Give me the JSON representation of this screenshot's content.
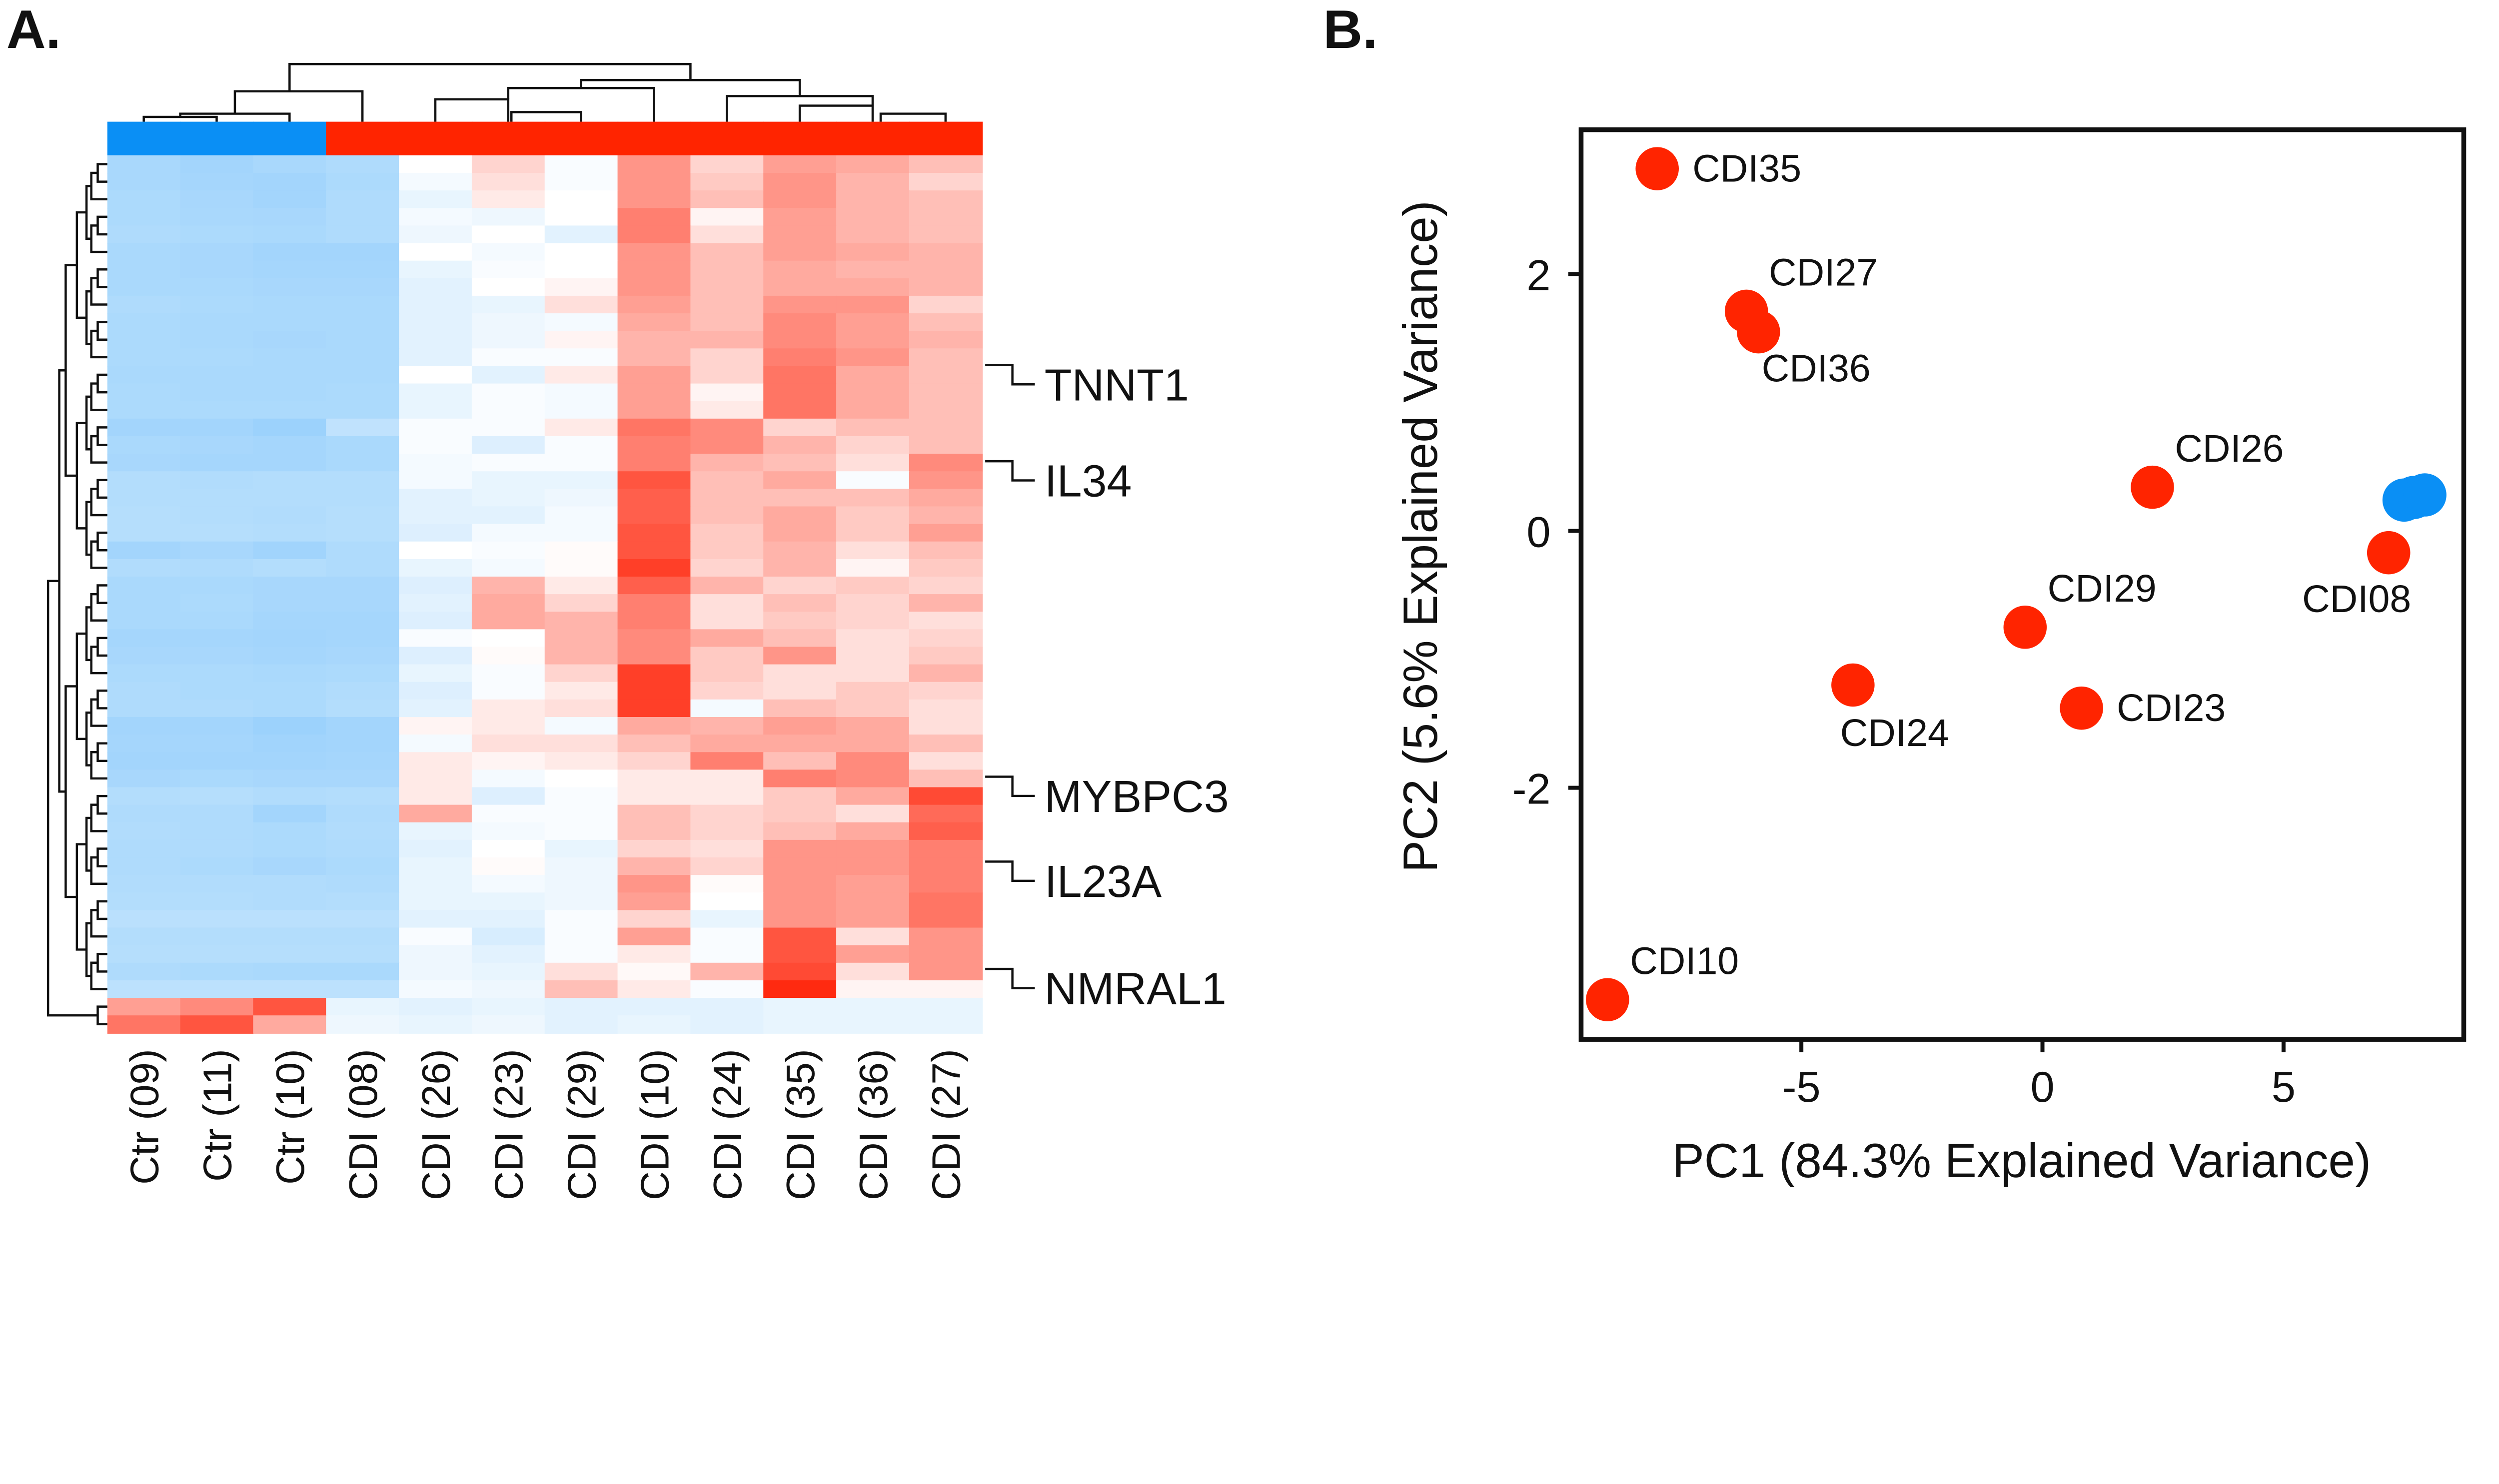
{
  "panels": {
    "a": "A.",
    "b": "B."
  },
  "colors": {
    "control": "#0a8ff5",
    "cdi": "#ff2400",
    "low": "#8ccbfb",
    "mid": "#ffffff",
    "high": "#ff2a10"
  },
  "chart_data": [
    {
      "type": "heatmap",
      "title": "",
      "columns": [
        "Ctr (09)",
        "Ctr (11)",
        "Ctr (10)",
        "CDI (08)",
        "CDI (26)",
        "CDI (23)",
        "CDI (29)",
        "CDI (10)",
        "CDI (24)",
        "CDI (35)",
        "CDI (36)",
        "CDI (27)"
      ],
      "column_groups": [
        "control",
        "control",
        "control",
        "cdi",
        "cdi",
        "cdi",
        "cdi",
        "cdi",
        "cdi",
        "cdi",
        "cdi",
        "cdi"
      ],
      "labeled_genes": [
        {
          "name": "TNNT1",
          "row": 14
        },
        {
          "name": "IL34",
          "row": 19
        },
        {
          "name": "MYBPC3",
          "row": 37
        },
        {
          "name": "IL23A",
          "row": 42
        },
        {
          "name": "NMRAL1",
          "row": 48
        }
      ],
      "scale": "relative expression (blue low, red high)",
      "values": [
        [
          -0.75,
          -0.8,
          -0.75,
          -0.7,
          0,
          0.2,
          -0.05,
          0.5,
          0.2,
          0.45,
          0.4,
          0.3
        ],
        [
          -0.75,
          -0.78,
          -0.8,
          -0.72,
          -0.1,
          0.15,
          -0.05,
          0.5,
          0.25,
          0.5,
          0.35,
          0.2
        ],
        [
          -0.72,
          -0.76,
          -0.8,
          -0.7,
          -0.2,
          0.1,
          0,
          0.5,
          0.3,
          0.5,
          0.35,
          0.3
        ],
        [
          -0.72,
          -0.75,
          -0.76,
          -0.7,
          -0.1,
          -0.15,
          0,
          0.6,
          0.05,
          0.45,
          0.35,
          0.3
        ],
        [
          -0.7,
          -0.72,
          -0.74,
          -0.7,
          -0.15,
          0,
          -0.25,
          0.6,
          0.15,
          0.45,
          0.35,
          0.3
        ],
        [
          -0.74,
          -0.76,
          -0.8,
          -0.8,
          0,
          -0.1,
          0,
          0.5,
          0.3,
          0.45,
          0.4,
          0.35
        ],
        [
          -0.74,
          -0.76,
          -0.78,
          -0.78,
          -0.2,
          -0.05,
          0,
          0.5,
          0.3,
          0.4,
          0.35,
          0.35
        ],
        [
          -0.74,
          -0.74,
          -0.76,
          -0.76,
          -0.25,
          0,
          0.05,
          0.5,
          0.3,
          0.4,
          0.4,
          0.35
        ],
        [
          -0.7,
          -0.72,
          -0.74,
          -0.74,
          -0.25,
          -0.2,
          0.15,
          0.45,
          0.3,
          0.5,
          0.5,
          0.2
        ],
        [
          -0.72,
          -0.74,
          -0.74,
          -0.74,
          -0.25,
          -0.15,
          -0.1,
          0.4,
          0.3,
          0.55,
          0.45,
          0.3
        ],
        [
          -0.72,
          -0.74,
          -0.76,
          -0.74,
          -0.25,
          -0.15,
          0.05,
          0.35,
          0.35,
          0.55,
          0.45,
          0.35
        ],
        [
          -0.72,
          -0.72,
          -0.74,
          -0.74,
          -0.25,
          -0.05,
          -0.05,
          0.35,
          0.2,
          0.6,
          0.5,
          0.3
        ],
        [
          -0.74,
          -0.74,
          -0.74,
          -0.74,
          0,
          -0.25,
          0.1,
          0.45,
          0.2,
          0.65,
          0.4,
          0.3
        ],
        [
          -0.72,
          -0.74,
          -0.74,
          -0.72,
          -0.2,
          -0.05,
          -0.1,
          0.45,
          0.05,
          0.65,
          0.4,
          0.3
        ],
        [
          -0.72,
          -0.72,
          -0.72,
          -0.72,
          -0.2,
          -0.05,
          -0.1,
          0.45,
          0.1,
          0.65,
          0.4,
          0.3
        ],
        [
          -0.8,
          -0.8,
          -0.86,
          -0.55,
          -0.05,
          -0.05,
          0.1,
          0.65,
          0.55,
          0.2,
          0.3,
          0.3
        ],
        [
          -0.74,
          -0.76,
          -0.78,
          -0.74,
          -0.05,
          -0.3,
          -0.05,
          0.6,
          0.55,
          0.35,
          0.2,
          0.3
        ],
        [
          -0.76,
          -0.78,
          -0.78,
          -0.74,
          -0.1,
          -0.05,
          -0.05,
          0.6,
          0.35,
          0.3,
          0.15,
          0.55
        ],
        [
          -0.66,
          -0.68,
          -0.66,
          -0.66,
          -0.1,
          -0.2,
          -0.2,
          0.8,
          0.3,
          0.4,
          -0.05,
          0.5
        ],
        [
          -0.66,
          -0.66,
          -0.66,
          -0.66,
          -0.25,
          -0.2,
          -0.15,
          0.75,
          0.3,
          0.3,
          0.3,
          0.4
        ],
        [
          -0.64,
          -0.66,
          -0.68,
          -0.64,
          -0.25,
          -0.25,
          -0.1,
          0.75,
          0.3,
          0.4,
          0.25,
          0.35
        ],
        [
          -0.64,
          -0.64,
          -0.66,
          -0.64,
          -0.3,
          -0.1,
          -0.1,
          0.8,
          0.25,
          0.4,
          0.25,
          0.45
        ],
        [
          -0.8,
          -0.76,
          -0.82,
          -0.7,
          0,
          -0.05,
          0.02,
          0.8,
          0.25,
          0.35,
          0.15,
          0.3
        ],
        [
          -0.68,
          -0.7,
          -0.66,
          -0.7,
          -0.2,
          -0.1,
          0.02,
          0.9,
          0.2,
          0.35,
          0.05,
          0.25
        ],
        [
          -0.74,
          -0.74,
          -0.76,
          -0.76,
          -0.3,
          0.35,
          0.1,
          0.75,
          0.35,
          0.2,
          0.25,
          0.2
        ],
        [
          -0.74,
          -0.72,
          -0.76,
          -0.76,
          -0.25,
          0.4,
          0.2,
          0.6,
          0.15,
          0.3,
          0.2,
          0.35
        ],
        [
          -0.74,
          -0.74,
          -0.78,
          -0.78,
          -0.3,
          0.4,
          0.35,
          0.6,
          0.15,
          0.25,
          0.2,
          0.15
        ],
        [
          -0.78,
          -0.78,
          -0.8,
          -0.78,
          -0.05,
          0,
          0.35,
          0.55,
          0.4,
          0.3,
          0.15,
          0.2
        ],
        [
          -0.76,
          -0.76,
          -0.78,
          -0.76,
          -0.3,
          0.02,
          0.35,
          0.55,
          0.25,
          0.5,
          0.15,
          0.25
        ],
        [
          -0.72,
          -0.72,
          -0.74,
          -0.72,
          -0.2,
          -0.05,
          0.2,
          0.9,
          0.25,
          0.15,
          0.15,
          0.35
        ],
        [
          -0.7,
          -0.72,
          -0.72,
          -0.68,
          -0.3,
          -0.05,
          0.1,
          0.9,
          0.2,
          0.15,
          0.25,
          0.2
        ],
        [
          -0.7,
          -0.7,
          -0.72,
          -0.66,
          -0.25,
          0.1,
          0.15,
          0.9,
          -0.1,
          0.3,
          0.25,
          0.15
        ],
        [
          -0.8,
          -0.8,
          -0.86,
          -0.8,
          0.05,
          0.1,
          -0.1,
          0.4,
          0.35,
          0.45,
          0.4,
          0.15
        ],
        [
          -0.78,
          -0.78,
          -0.82,
          -0.8,
          -0.1,
          0.15,
          0.15,
          0.3,
          0.4,
          0.4,
          0.4,
          0.3
        ],
        [
          -0.8,
          -0.8,
          -0.8,
          -0.78,
          0.1,
          0.05,
          0.1,
          0.2,
          0.6,
          0.3,
          0.55,
          0.15
        ],
        [
          -0.76,
          -0.74,
          -0.76,
          -0.76,
          0.1,
          -0.1,
          0,
          0.1,
          0.1,
          0.6,
          0.55,
          0.3
        ],
        [
          -0.66,
          -0.64,
          -0.68,
          -0.66,
          0.1,
          -0.3,
          -0.05,
          0.1,
          0.1,
          0.25,
          0.4,
          0.85
        ],
        [
          -0.7,
          -0.7,
          -0.8,
          -0.7,
          0.4,
          -0.05,
          -0.05,
          0.3,
          0.2,
          0.25,
          0.15,
          0.7
        ],
        [
          -0.68,
          -0.7,
          -0.72,
          -0.68,
          -0.2,
          -0.1,
          -0.05,
          0.3,
          0.2,
          0.3,
          0.4,
          0.75
        ],
        [
          -0.7,
          -0.7,
          -0.72,
          -0.7,
          -0.25,
          0,
          -0.2,
          0.2,
          0.15,
          0.5,
          0.5,
          0.6
        ],
        [
          -0.7,
          -0.72,
          -0.76,
          -0.72,
          -0.2,
          0.02,
          -0.15,
          0.35,
          0.2,
          0.5,
          0.5,
          0.6
        ],
        [
          -0.68,
          -0.68,
          -0.68,
          -0.7,
          -0.2,
          -0.1,
          -0.15,
          0.5,
          0.02,
          0.5,
          0.45,
          0.6
        ],
        [
          -0.66,
          -0.66,
          -0.68,
          -0.66,
          -0.2,
          -0.2,
          -0.15,
          0.45,
          0,
          0.5,
          0.45,
          0.65
        ],
        [
          -0.6,
          -0.6,
          -0.6,
          -0.6,
          -0.25,
          -0.25,
          -0.05,
          0.2,
          -0.2,
          0.5,
          0.45,
          0.65
        ],
        [
          -0.66,
          -0.66,
          -0.66,
          -0.66,
          -0.05,
          -0.35,
          -0.05,
          0.45,
          -0.05,
          0.8,
          0.15,
          0.5
        ],
        [
          -0.64,
          -0.64,
          -0.64,
          -0.64,
          -0.15,
          -0.25,
          -0.05,
          0.1,
          -0.05,
          0.8,
          0.45,
          0.5
        ],
        [
          -0.7,
          -0.72,
          -0.74,
          -0.74,
          -0.15,
          -0.2,
          0.15,
          0.03,
          0.35,
          0.85,
          0.15,
          0.5
        ],
        [
          -0.58,
          -0.58,
          -0.58,
          -0.58,
          -0.1,
          -0.15,
          0.3,
          0.1,
          -0.05,
          1.0,
          0.05,
          0.05
        ],
        [
          0.45,
          0.55,
          0.8,
          -0.2,
          -0.25,
          -0.2,
          -0.25,
          -0.25,
          -0.25,
          -0.2,
          -0.2,
          -0.2
        ],
        [
          0.65,
          0.8,
          0.4,
          -0.15,
          -0.2,
          -0.15,
          -0.25,
          -0.2,
          -0.25,
          -0.2,
          -0.2,
          -0.2
        ]
      ]
    },
    {
      "type": "scatter",
      "title": "",
      "xlabel": "PC1 (84.3% Explained Variance)",
      "ylabel": "PC2 (5.6% Explained Variance)",
      "xlim": [
        -9.8,
        8.8
      ],
      "ylim": [
        -3.97,
        3.13
      ],
      "xticks": [
        -5,
        0,
        5
      ],
      "yticks": [
        2,
        0,
        -2
      ],
      "grid": false,
      "points": [
        {
          "label": "CDI35",
          "x": -7.99,
          "y": 2.82,
          "group": "cdi",
          "label_pos": "right"
        },
        {
          "label": "CDI27",
          "x": -6.14,
          "y": 1.71,
          "group": "cdi",
          "label_pos": "top-right"
        },
        {
          "label": "CDI36",
          "x": -5.89,
          "y": 1.55,
          "group": "cdi",
          "label_pos": "bottom-right"
        },
        {
          "label": "CDI26",
          "x": 2.28,
          "y": 0.34,
          "group": "cdi",
          "label_pos": "top-right"
        },
        {
          "label": "CDI29",
          "x": -0.36,
          "y": -0.75,
          "group": "cdi",
          "label_pos": "top-right"
        },
        {
          "label": "CDI24",
          "x": -3.93,
          "y": -1.2,
          "group": "cdi",
          "label_pos": "bottom"
        },
        {
          "label": "CDI23",
          "x": 0.81,
          "y": -1.38,
          "group": "cdi",
          "label_pos": "right"
        },
        {
          "label": "CDI08",
          "x": 7.18,
          "y": -0.17,
          "group": "cdi",
          "label_pos": "bottom-left"
        },
        {
          "label": "CDI10",
          "x": -9.02,
          "y": -3.65,
          "group": "cdi",
          "label_pos": "top-right"
        },
        {
          "label": "",
          "x": 7.5,
          "y": 0.24,
          "group": "control"
        },
        {
          "label": "",
          "x": 7.7,
          "y": 0.26,
          "group": "control"
        },
        {
          "label": "",
          "x": 7.93,
          "y": 0.28,
          "group": "control"
        }
      ]
    }
  ]
}
